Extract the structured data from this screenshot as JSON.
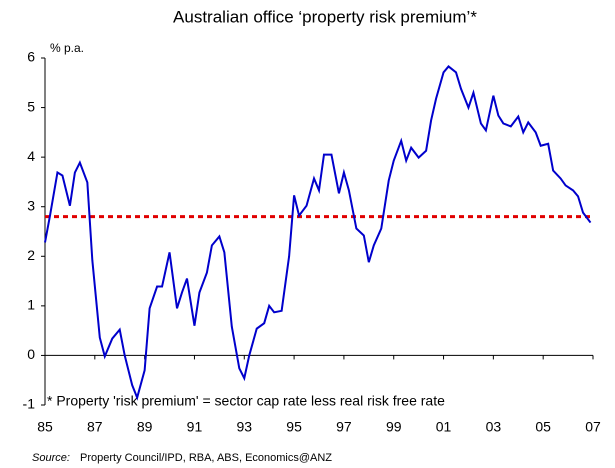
{
  "chart_data": {
    "type": "line",
    "title": "Australian office ‘property risk premium’*",
    "y_label": "% p.a.",
    "annotation": "* Property 'risk premium' = sector cap rate less real risk free rate",
    "source_prefix": "Source:",
    "source": "Property Council/IPD, RBA, ABS, Economics@ANZ",
    "x": [
      1985.0,
      1985.2,
      1985.5,
      1985.7,
      1986.0,
      1986.2,
      1986.4,
      1986.7,
      1986.9,
      1987.2,
      1987.4,
      1987.7,
      1988.0,
      1988.2,
      1988.5,
      1988.7,
      1989.0,
      1989.2,
      1989.5,
      1989.7,
      1990.0,
      1990.3,
      1990.5,
      1990.7,
      1991.0,
      1991.2,
      1991.5,
      1991.7,
      1992.0,
      1992.2,
      1992.5,
      1992.8,
      1993.0,
      1993.2,
      1993.5,
      1993.8,
      1994.0,
      1994.2,
      1994.5,
      1994.8,
      1995.0,
      1995.2,
      1995.5,
      1995.8,
      1996.0,
      1996.2,
      1996.5,
      1996.8,
      1997.0,
      1997.2,
      1997.5,
      1997.8,
      1998.0,
      1998.2,
      1998.5,
      1998.8,
      1999.0,
      1999.3,
      1999.5,
      1999.7,
      2000.0,
      2000.3,
      2000.5,
      2000.7,
      2001.0,
      2001.2,
      2001.5,
      2001.7,
      2002.0,
      2002.2,
      2002.5,
      2002.7,
      2003.0,
      2003.2,
      2003.4,
      2003.7,
      2004.0,
      2004.2,
      2004.4,
      2004.7,
      2004.9,
      2005.2,
      2005.4,
      2005.7,
      2005.9,
      2006.2,
      2006.4,
      2006.6,
      2006.9
    ],
    "values": [
      2.28,
      2.82,
      3.69,
      3.63,
      3.02,
      3.69,
      3.89,
      3.49,
      1.92,
      0.36,
      -0.02,
      0.34,
      0.52,
      0.0,
      -0.6,
      -0.85,
      -0.3,
      0.95,
      1.39,
      1.39,
      2.08,
      0.95,
      1.27,
      1.55,
      0.6,
      1.27,
      1.67,
      2.22,
      2.4,
      2.08,
      0.58,
      -0.26,
      -0.46,
      0.0,
      0.54,
      0.65,
      1.0,
      0.87,
      0.9,
      2.0,
      3.23,
      2.82,
      3.02,
      3.57,
      3.33,
      4.05,
      4.05,
      3.27,
      3.69,
      3.33,
      2.56,
      2.42,
      1.88,
      2.22,
      2.56,
      3.53,
      3.93,
      4.33,
      3.93,
      4.19,
      3.99,
      4.13,
      4.74,
      5.18,
      5.71,
      5.83,
      5.71,
      5.38,
      5.0,
      5.3,
      4.68,
      4.54,
      5.24,
      4.84,
      4.68,
      4.62,
      4.82,
      4.5,
      4.7,
      4.5,
      4.23,
      4.27,
      3.73,
      3.57,
      3.43,
      3.33,
      3.21,
      2.88,
      2.68
    ],
    "color": "#0000cc",
    "reference_line": {
      "value": 2.8,
      "color": "#e00000"
    },
    "xlim": [
      1985,
      2007
    ],
    "ylim": [
      -1,
      6
    ],
    "xticks": [
      {
        "value": 1985,
        "label": "85"
      },
      {
        "value": 1987,
        "label": "87"
      },
      {
        "value": 1989,
        "label": "89"
      },
      {
        "value": 1991,
        "label": "91"
      },
      {
        "value": 1993,
        "label": "93"
      },
      {
        "value": 1995,
        "label": "95"
      },
      {
        "value": 1997,
        "label": "97"
      },
      {
        "value": 1999,
        "label": "99"
      },
      {
        "value": 2001,
        "label": "01"
      },
      {
        "value": 2003,
        "label": "03"
      },
      {
        "value": 2005,
        "label": "05"
      },
      {
        "value": 2007,
        "label": "07"
      }
    ],
    "yticks": [
      -1,
      0,
      1,
      2,
      3,
      4,
      5,
      6
    ],
    "grid": false
  }
}
